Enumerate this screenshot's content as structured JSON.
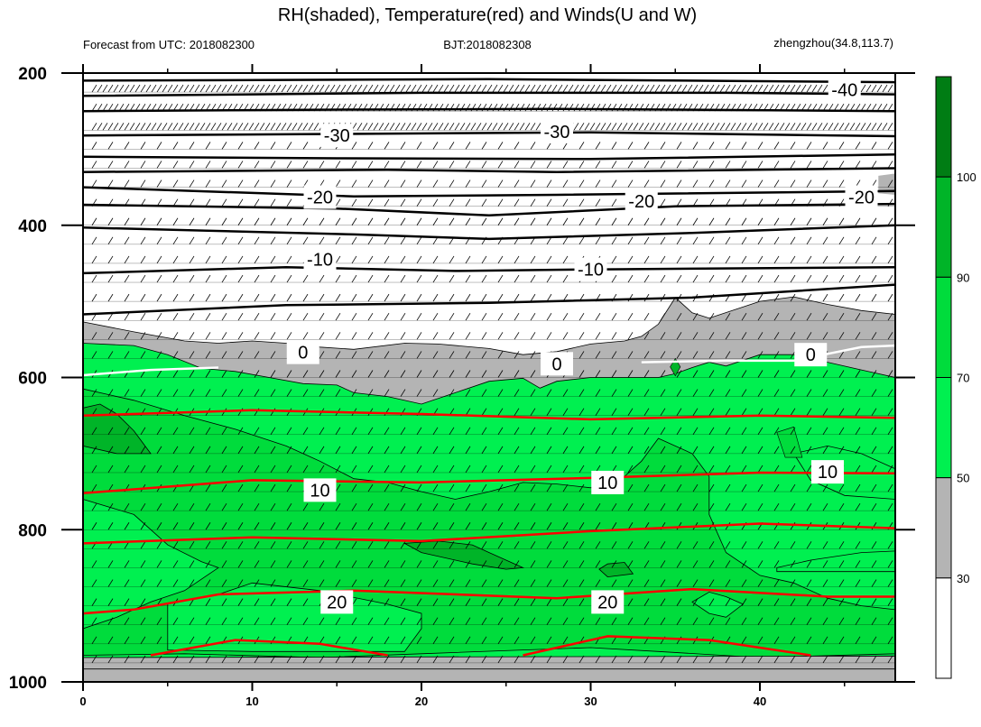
{
  "chart_data": {
    "type": "contour",
    "title": "RH(shaded), Temperature(red) and Winds(U and W)",
    "header_left": "Forecast from UTC: 2018082300",
    "header_center": "BJT:2018082308",
    "header_right": "zhengzhou(34.8,113.7)",
    "x_axis": {
      "ticks": [
        0,
        10,
        20,
        30,
        40
      ],
      "xlim": [
        0,
        48
      ]
    },
    "y_axis": {
      "ticks": [
        200,
        400,
        600,
        800,
        1000
      ],
      "ylim": [
        1000,
        200
      ],
      "inverted": true
    },
    "colorbar": {
      "levels": [
        30,
        50,
        70,
        90,
        100
      ],
      "colors": [
        "#ffffff",
        "#b4b4b4",
        "#00f050",
        "#00dc3c",
        "#00b428",
        "#007d14"
      ]
    },
    "temperature_contours": [
      {
        "value": -40,
        "label": "-40",
        "level": 222
      },
      {
        "value": -30,
        "label": "-30",
        "level": 280
      },
      {
        "value": -20,
        "label": "-20",
        "level": 368
      },
      {
        "value": -10,
        "label": "-10",
        "level": 455
      },
      {
        "value": 0,
        "label": "0",
        "level": 575
      },
      {
        "value": 10,
        "label": "10",
        "level": 738
      },
      {
        "value": 20,
        "label": "20",
        "level": 885
      }
    ],
    "colors": {
      "temperature": "#ff0000",
      "isotherm_zero": "#ffffff",
      "contour": "#000000"
    }
  }
}
